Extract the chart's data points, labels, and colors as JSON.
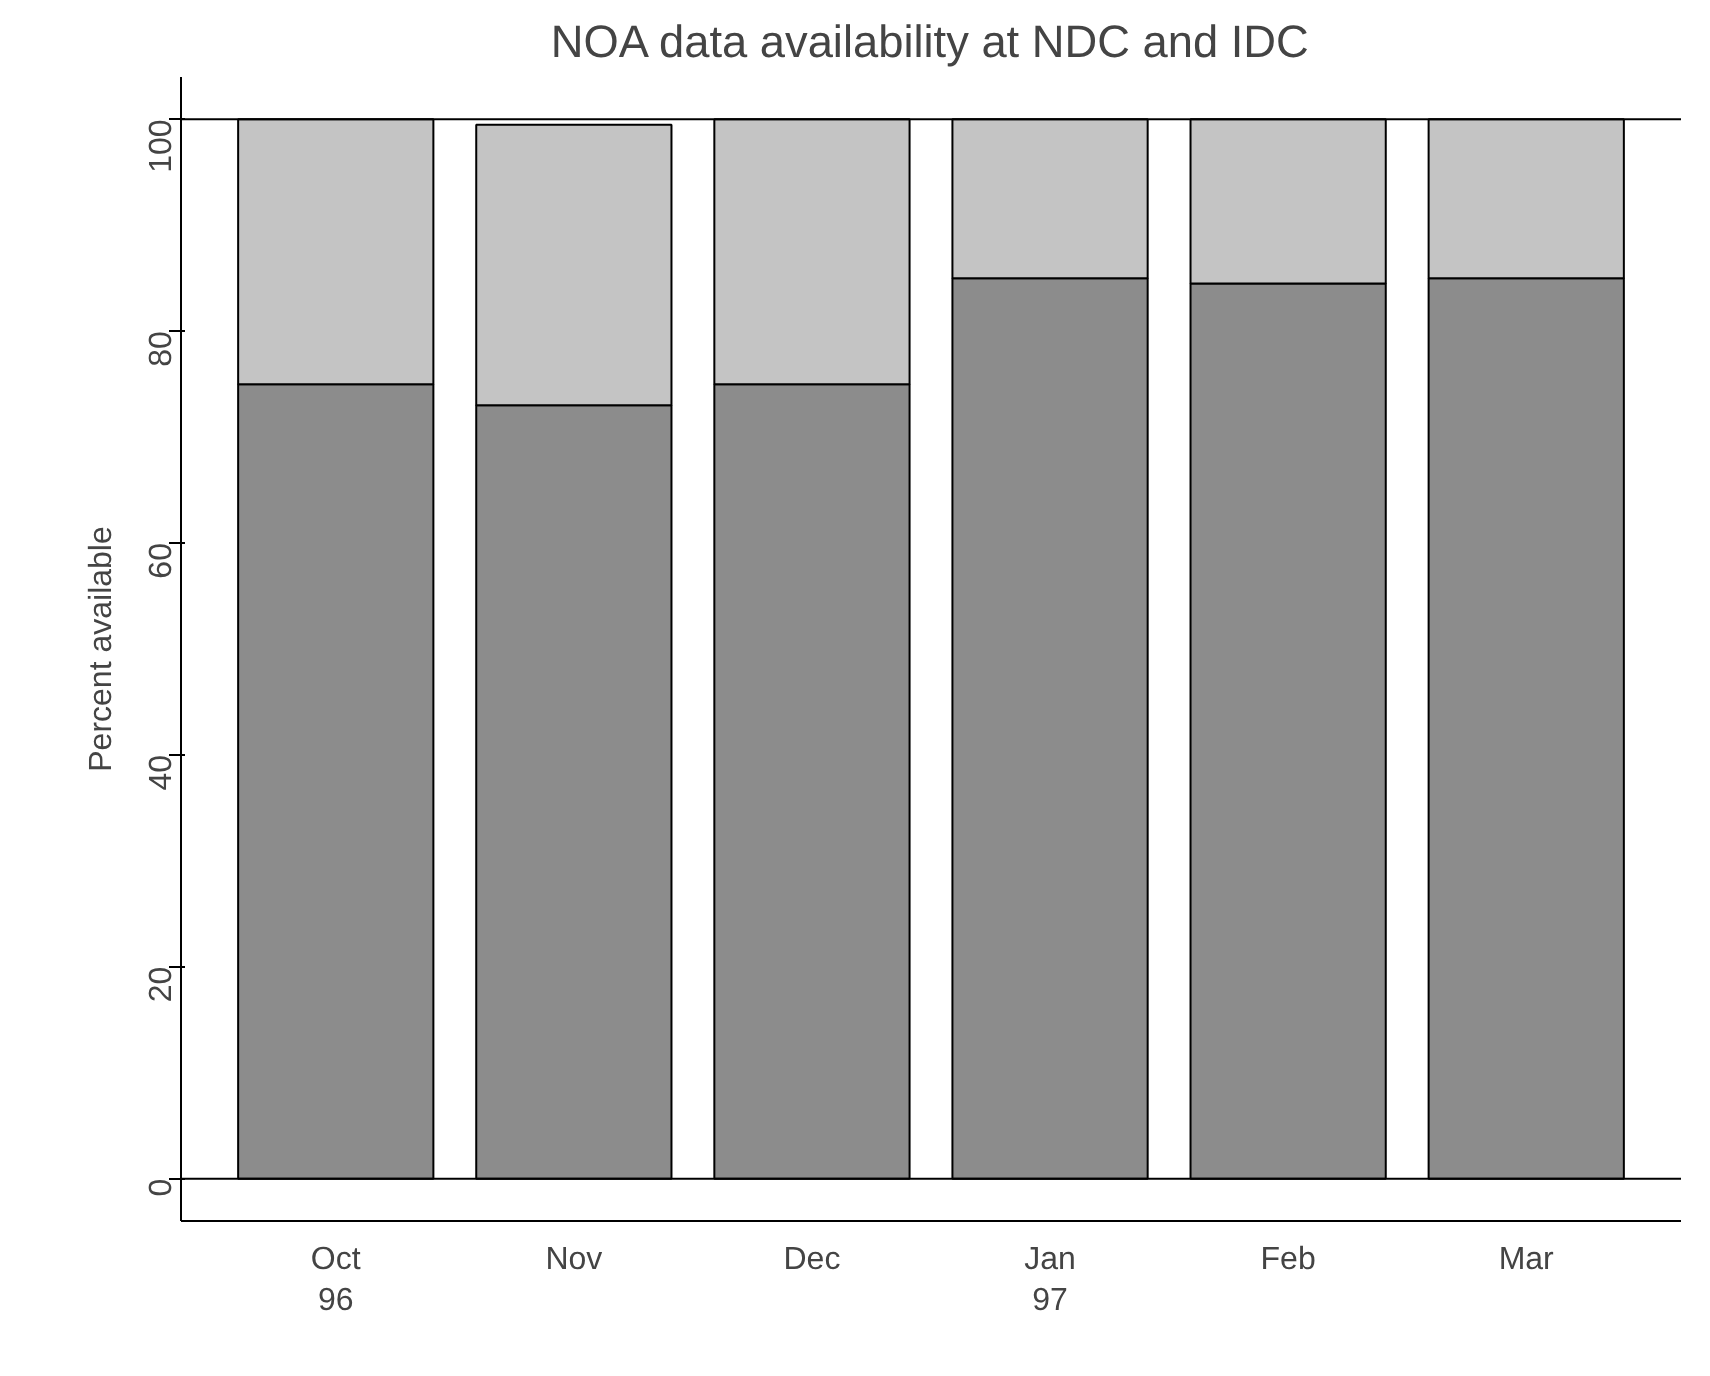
{
  "chart_data": {
    "type": "bar",
    "title": "NOA data availability at NDC and IDC",
    "ylabel": "Percent available",
    "categories": [
      "Oct\n96",
      "Nov",
      "Dec",
      "Jan\n97",
      "Feb",
      "Mar"
    ],
    "stacked": true,
    "series": [
      {
        "color": "#8c8c8c",
        "values": [
          75,
          73,
          75,
          85,
          84.5,
          85
        ]
      },
      {
        "color": "#c4c4c4",
        "values": [
          25,
          26.5,
          25,
          15,
          15.5,
          15
        ]
      }
    ],
    "ylim": [
      -4,
      104
    ],
    "yticks": [
      0,
      20,
      40,
      60,
      80,
      100
    ],
    "ref_lines": [
      {
        "axis": "y",
        "value": 100
      },
      {
        "axis": "y",
        "value": 0
      }
    ],
    "grid": false
  }
}
